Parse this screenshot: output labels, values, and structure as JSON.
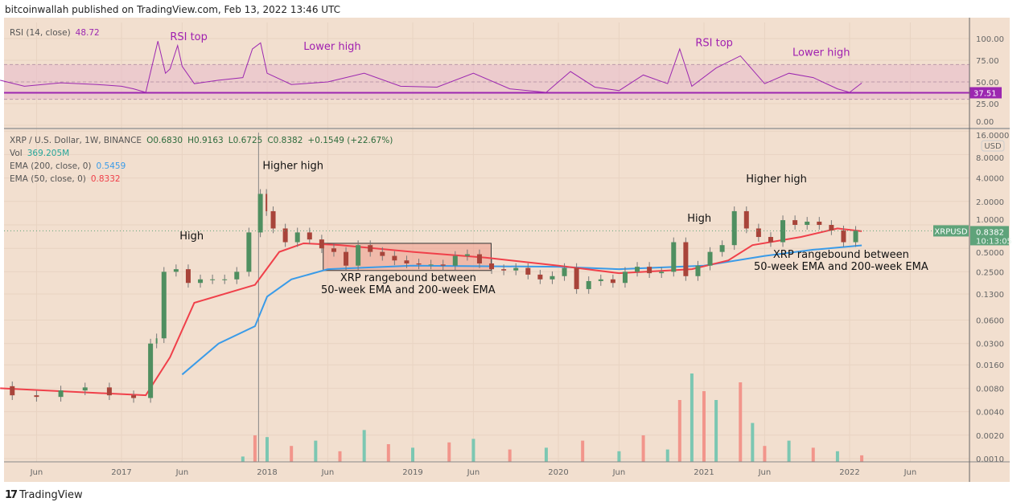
{
  "header": {
    "published": "bitcoinwallah published on TradingView.com, Feb 13, 2022 13:46 UTC"
  },
  "footer": {
    "brand": "TradingView"
  },
  "colors": {
    "background": "#f2dfcf",
    "up": "#4f8f60",
    "down": "#a8443a",
    "ema50": "#f0404a",
    "ema200": "#3a9be8",
    "rsi": "#9c27b0",
    "vol_up": "#7cc7b2",
    "vol_down": "#f2958b",
    "box_fill": "#ee9a8c",
    "last_price": "#5fa37a"
  },
  "legend": {
    "rsi_label": "RSI (14, close)",
    "rsi_value": "48.72",
    "symbol": "XRP / U.S. Dollar, 1W, BINANCE",
    "o": "O0.6830",
    "h": "H0.9163",
    "l": "L0.6725",
    "c": "C0.8382",
    "chg": "+0.1549 (+22.67%)",
    "vol_label": "Vol",
    "vol_value": "369.205M",
    "ema200_label": "EMA (200, close, 0)",
    "ema200_value": "0.5459",
    "ema50_label": "EMA (50, close, 0)",
    "ema50_value": "0.8332"
  },
  "chart_data": {
    "type": "candlestick",
    "yscale": "log",
    "currency": "USD",
    "price_ticks": [
      "16.0000",
      "8.0000",
      "4.0000",
      "2.0000",
      "1.0000",
      "0.5000",
      "0.2500",
      "0.1300",
      "0.0600",
      "0.0300",
      "0.0160",
      "0.0080",
      "0.0040",
      "0.0020",
      "0.0010"
    ],
    "rsi_ticks": [
      "100.00",
      "75.00",
      "50.00",
      "25.00",
      "0.00"
    ],
    "x_ticks": [
      [
        "2016-06",
        "Jun"
      ],
      [
        "2017-01",
        "2017"
      ],
      [
        "2017-06",
        "Jun"
      ],
      [
        "2018-01",
        "2018"
      ],
      [
        "2018-06",
        "Jun"
      ],
      [
        "2019-01",
        "2019"
      ],
      [
        "2019-06",
        "Jun"
      ],
      [
        "2020-01",
        "2020"
      ],
      [
        "2020-06",
        "Jun"
      ],
      [
        "2021-01",
        "2021"
      ],
      [
        "2021-06",
        "Jun"
      ],
      [
        "2022-01",
        "2022"
      ],
      [
        "2022-06",
        "Jun"
      ]
    ],
    "last_price": {
      "symbol": "XRPUSD",
      "value": "0.8382",
      "countdown": "10:13:05"
    },
    "rsi_level": {
      "value": "37.51"
    },
    "rsi_bands": [
      30,
      50,
      70
    ],
    "closes": [
      [
        "2016-03",
        0.0085
      ],
      [
        "2016-05",
        0.0065
      ],
      [
        "2016-07",
        0.0062
      ],
      [
        "2016-09",
        0.0075
      ],
      [
        "2016-11",
        0.0082
      ],
      [
        "2017-01",
        0.0065
      ],
      [
        "2017-03",
        0.006
      ],
      [
        "2017-03-25",
        0.03
      ],
      [
        "2017-04",
        0.035
      ],
      [
        "2017-05",
        0.25
      ],
      [
        "2017-06",
        0.27
      ],
      [
        "2017-07",
        0.18
      ],
      [
        "2017-08",
        0.2
      ],
      [
        "2017-09",
        0.2
      ],
      [
        "2017-10",
        0.2
      ],
      [
        "2017-11",
        0.25
      ],
      [
        "2017-12",
        0.8
      ],
      [
        "2017-12-28",
        2.5
      ],
      [
        "2018-01",
        1.5
      ],
      [
        "2018-02",
        0.9
      ],
      [
        "2018-03",
        0.6
      ],
      [
        "2018-04",
        0.8
      ],
      [
        "2018-05",
        0.65
      ],
      [
        "2018-06",
        0.5
      ],
      [
        "2018-07",
        0.45
      ],
      [
        "2018-08",
        0.3
      ],
      [
        "2018-09",
        0.55
      ],
      [
        "2018-10",
        0.45
      ],
      [
        "2018-11",
        0.4
      ],
      [
        "2018-12",
        0.35
      ],
      [
        "2019-01",
        0.32
      ],
      [
        "2019-02",
        0.31
      ],
      [
        "2019-03",
        0.31
      ],
      [
        "2019-04",
        0.3
      ],
      [
        "2019-05",
        0.4
      ],
      [
        "2019-06",
        0.42
      ],
      [
        "2019-07",
        0.32
      ],
      [
        "2019-08",
        0.27
      ],
      [
        "2019-09",
        0.26
      ],
      [
        "2019-10",
        0.28
      ],
      [
        "2019-11",
        0.23
      ],
      [
        "2019-12",
        0.2
      ],
      [
        "2020-01",
        0.22
      ],
      [
        "2020-02",
        0.28
      ],
      [
        "2020-03",
        0.15
      ],
      [
        "2020-04",
        0.19
      ],
      [
        "2020-05",
        0.2
      ],
      [
        "2020-06",
        0.18
      ],
      [
        "2020-07",
        0.25
      ],
      [
        "2020-08",
        0.29
      ],
      [
        "2020-09",
        0.24
      ],
      [
        "2020-10",
        0.25
      ],
      [
        "2020-11",
        0.6
      ],
      [
        "2020-12",
        0.22
      ],
      [
        "2021-01",
        0.3
      ],
      [
        "2021-02",
        0.45
      ],
      [
        "2021-03",
        0.55
      ],
      [
        "2021-04",
        1.5
      ],
      [
        "2021-05",
        0.9
      ],
      [
        "2021-06",
        0.7
      ],
      [
        "2021-07",
        0.6
      ],
      [
        "2021-08",
        1.15
      ],
      [
        "2021-09",
        1.0
      ],
      [
        "2021-10",
        1.1
      ],
      [
        "2021-11",
        1.0
      ],
      [
        "2021-12",
        0.85
      ],
      [
        "2022-01",
        0.6
      ],
      [
        "2022-02",
        0.84
      ]
    ],
    "ema50": [
      [
        "2016-03",
        0.008
      ],
      [
        "2017-03",
        0.0065
      ],
      [
        "2017-05",
        0.02
      ],
      [
        "2017-07",
        0.1
      ],
      [
        "2017-12",
        0.17
      ],
      [
        "2018-02",
        0.45
      ],
      [
        "2018-04",
        0.58
      ],
      [
        "2018-07",
        0.55
      ],
      [
        "2019-01",
        0.45
      ],
      [
        "2019-07",
        0.38
      ],
      [
        "2020-01",
        0.3
      ],
      [
        "2020-06",
        0.24
      ],
      [
        "2020-12",
        0.27
      ],
      [
        "2021-03",
        0.35
      ],
      [
        "2021-05",
        0.55
      ],
      [
        "2021-09",
        0.7
      ],
      [
        "2021-12",
        0.9
      ],
      [
        "2022-02",
        0.83
      ]
    ],
    "ema200": [
      [
        "2017-06",
        0.012
      ],
      [
        "2017-09",
        0.03
      ],
      [
        "2017-12",
        0.05
      ],
      [
        "2018-01",
        0.12
      ],
      [
        "2018-03",
        0.2
      ],
      [
        "2018-06",
        0.27
      ],
      [
        "2019-01",
        0.3
      ],
      [
        "2020-01",
        0.29
      ],
      [
        "2020-06",
        0.27
      ],
      [
        "2021-01",
        0.3
      ],
      [
        "2021-06",
        0.4
      ],
      [
        "2021-10",
        0.48
      ],
      [
        "2022-02",
        0.546
      ]
    ],
    "rsi": [
      [
        "2016-03",
        52
      ],
      [
        "2016-05",
        45
      ],
      [
        "2016-08",
        49
      ],
      [
        "2016-11",
        47
      ],
      [
        "2017-01",
        45
      ],
      [
        "2017-02",
        42
      ],
      [
        "2017-03",
        38
      ],
      [
        "2017-04",
        97
      ],
      [
        "2017-04-20",
        60
      ],
      [
        "2017-05",
        65
      ],
      [
        "2017-05-20",
        92
      ],
      [
        "2017-06",
        68
      ],
      [
        "2017-07",
        48
      ],
      [
        "2017-09",
        52
      ],
      [
        "2017-11",
        55
      ],
      [
        "2017-11-25",
        88
      ],
      [
        "2017-12-15",
        95
      ],
      [
        "2018-01",
        60
      ],
      [
        "2018-03",
        47
      ],
      [
        "2018-06",
        50
      ],
      [
        "2018-09",
        60
      ],
      [
        "2018-12",
        45
      ],
      [
        "2019-03",
        44
      ],
      [
        "2019-06",
        60
      ],
      [
        "2019-09",
        42
      ],
      [
        "2019-12",
        38
      ],
      [
        "2020-02",
        62
      ],
      [
        "2020-04",
        44
      ],
      [
        "2020-06",
        40
      ],
      [
        "2020-08",
        58
      ],
      [
        "2020-10",
        48
      ],
      [
        "2020-11",
        88
      ],
      [
        "2020-12",
        45
      ],
      [
        "2021-02",
        66
      ],
      [
        "2021-04",
        80
      ],
      [
        "2021-06",
        48
      ],
      [
        "2021-08",
        60
      ],
      [
        "2021-10",
        55
      ],
      [
        "2021-12",
        42
      ],
      [
        "2022-01",
        38
      ],
      [
        "2022-02",
        48.72
      ]
    ],
    "volume_unit": "M",
    "volume": [
      [
        "2017-11",
        300
      ],
      [
        "2017-12",
        1500
      ],
      [
        "2018-01",
        1400
      ],
      [
        "2018-03",
        900
      ],
      [
        "2018-05",
        1200
      ],
      [
        "2018-07",
        600
      ],
      [
        "2018-09",
        1800
      ],
      [
        "2018-11",
        1000
      ],
      [
        "2019-01",
        800
      ],
      [
        "2019-04",
        1100
      ],
      [
        "2019-06",
        1300
      ],
      [
        "2019-09",
        700
      ],
      [
        "2019-12",
        800
      ],
      [
        "2020-03",
        1200
      ],
      [
        "2020-06",
        600
      ],
      [
        "2020-08",
        1500
      ],
      [
        "2020-10",
        700
      ],
      [
        "2020-11",
        3500
      ],
      [
        "2020-12",
        5000
      ],
      [
        "2021-01",
        4000
      ],
      [
        "2021-02",
        3500
      ],
      [
        "2021-04",
        4500
      ],
      [
        "2021-05",
        2200
      ],
      [
        "2021-06",
        900
      ],
      [
        "2021-08",
        1200
      ],
      [
        "2021-10",
        800
      ],
      [
        "2021-12",
        600
      ],
      [
        "2022-02",
        369
      ]
    ],
    "range_box": {
      "from": "2018-05-20",
      "to": "2019-07-15",
      "low": 0.26,
      "high": 0.58
    },
    "vline": "2017-12-10",
    "annotations": [
      {
        "text": "High",
        "date": "2017-05-25",
        "price": 0.65,
        "pane": "price"
      },
      {
        "text": "Higher high",
        "date": "2017-12-20",
        "price": 5.2,
        "pane": "price"
      },
      {
        "text": "High",
        "date": "2020-11-20",
        "price": 1.1,
        "pane": "price"
      },
      {
        "text": "Higher high",
        "date": "2021-04-15",
        "price": 3.5,
        "pane": "price"
      },
      {
        "text": "RSI top",
        "date": "2017-05-01",
        "rsi": 98,
        "pane": "rsi"
      },
      {
        "text": "Lower high",
        "date": "2018-04-01",
        "rsi": 87,
        "pane": "rsi"
      },
      {
        "text": "RSI top",
        "date": "2020-12-10",
        "rsi": 91,
        "pane": "rsi"
      },
      {
        "text": "Lower high",
        "date": "2021-08-10",
        "rsi": 80,
        "pane": "rsi"
      }
    ],
    "notes": [
      {
        "lines": [
          "XRP rangebound between",
          "50-week EMA and 200-week EMA"
        ],
        "date": "2018-12-20",
        "price": 0.19
      },
      {
        "lines": [
          "XRP rangebound between",
          "50-week EMA and 200-week EMA"
        ],
        "date": "2021-12-10",
        "price": 0.38
      }
    ]
  }
}
